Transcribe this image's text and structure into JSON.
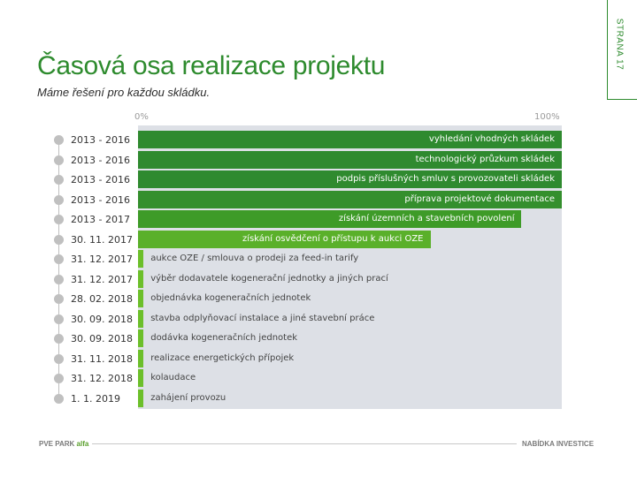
{
  "title": "Časová osa realizace projektu",
  "subtitle": "Máme řešení pro každou skládku.",
  "side_label": "STRANA 17",
  "scale": {
    "start_label": "0%",
    "end_label": "100%"
  },
  "colors": {
    "title": "#2e8b2e",
    "bar_dark": "#2f8a2f",
    "bar_mid": "#3e9b28",
    "bar_light": "#6cbf2a",
    "chart_bg": "#dde0e6"
  },
  "rows": [
    {
      "date": "2013 - 2016",
      "task": "vyhledání vhodných skládek",
      "bar_start": 0,
      "bar_end": 1.0,
      "color": "#2f8a2f"
    },
    {
      "date": "2013 - 2016",
      "task": "technologický průzkum skládek",
      "bar_start": 0,
      "bar_end": 1.0,
      "color": "#2f8a2f"
    },
    {
      "date": "2013 - 2016",
      "task": "podpis příslušných smluv s provozovateli skládek",
      "bar_start": 0,
      "bar_end": 1.0,
      "color": "#2f8a2f"
    },
    {
      "date": "2013 - 2016",
      "task": "příprava projektové dokumentace",
      "bar_start": 0,
      "bar_end": 1.0,
      "color": "#348f2d"
    },
    {
      "date": "2013 - 2017",
      "task": "získání územních a stavebních povolení",
      "bar_start": 0,
      "bar_end": 0.905,
      "color": "#3e9b28"
    },
    {
      "date": "30. 11. 2017",
      "task": "získání osvědčení o přístupu k aukci OZE",
      "bar_start": 0,
      "bar_end": 0.69,
      "color": "#5ab02a"
    },
    {
      "date": "31. 12. 2017",
      "task": "aukce OZE / smlouva o prodeji za feed-in tarify",
      "bar_start": 0,
      "bar_end": 0.013,
      "color": "#6cbf2a"
    },
    {
      "date": "31. 12. 2017",
      "task": "výběr dodavatele kogenerační jednotky a jiných prací",
      "bar_start": 0,
      "bar_end": 0.013,
      "color": "#6cbf2a"
    },
    {
      "date": "28. 02. 2018",
      "task": "objednávka kogeneračních jednotek",
      "bar_start": 0,
      "bar_end": 0.013,
      "color": "#6cbf2a"
    },
    {
      "date": "30. 09. 2018",
      "task": "stavba odplyňovací instalace a jiné stavební práce",
      "bar_start": 0,
      "bar_end": 0.013,
      "color": "#6cbf2a"
    },
    {
      "date": "30. 09. 2018",
      "task": "dodávka kogeneračních jednotek",
      "bar_start": 0,
      "bar_end": 0.013,
      "color": "#6cbf2a"
    },
    {
      "date": "31. 11. 2018",
      "task": "realizace energetických přípojek",
      "bar_start": 0,
      "bar_end": 0.013,
      "color": "#6cbf2a"
    },
    {
      "date": "31. 12. 2018",
      "task": "kolaudace",
      "bar_start": 0,
      "bar_end": 0.013,
      "color": "#6cbf2a"
    },
    {
      "date": "1. 1. 2019",
      "task": "zahájení provozu",
      "bar_start": 0,
      "bar_end": 0.013,
      "color": "#6cbf2a"
    }
  ],
  "footer": {
    "left_main": "PVE PARK",
    "left_accent": "alfa",
    "right": "NABÍDKA INVESTICE"
  }
}
